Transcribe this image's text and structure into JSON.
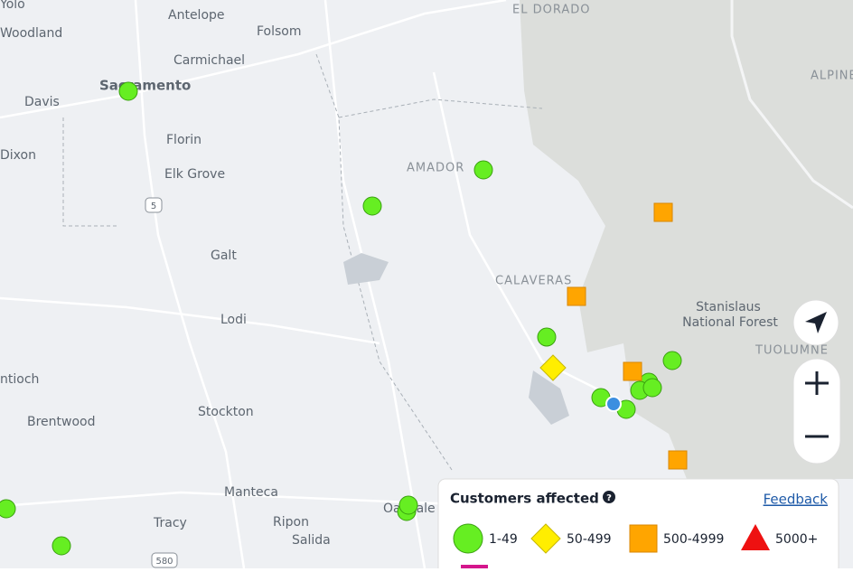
{
  "places": {
    "yolo": "Yolo",
    "woodland": "Woodland",
    "antelope": "Antelope",
    "folsom": "Folsom",
    "el_dorado": "EL DORADO",
    "carmichael": "Carmichael",
    "sacramento": "Sacramento",
    "davis": "Davis",
    "alpine": "ALPINE",
    "florin": "Florin",
    "dixon": "Dixon",
    "amador": "AMADOR",
    "elk_grove": "Elk Grove",
    "galt": "Galt",
    "calaveras": "CALAVERAS",
    "lodi": "Lodi",
    "forest_1": "Stanislaus",
    "forest_2": "National Forest",
    "tuolumne": "TUOLUMNE",
    "antioch": "ntioch",
    "brentwood": "Brentwood",
    "stockton": "Stockton",
    "manteca": "Manteca",
    "tracy": "Tracy",
    "ripon": "Ripon",
    "salida": "Salida",
    "oakdale": "Oakdale",
    "i5": "5",
    "i580": "580"
  },
  "legend": {
    "title": "Customers affected",
    "help": "?",
    "feedback": "Feedback",
    "items": [
      "1-49",
      "50-499",
      "500-4999",
      "5000+"
    ]
  }
}
